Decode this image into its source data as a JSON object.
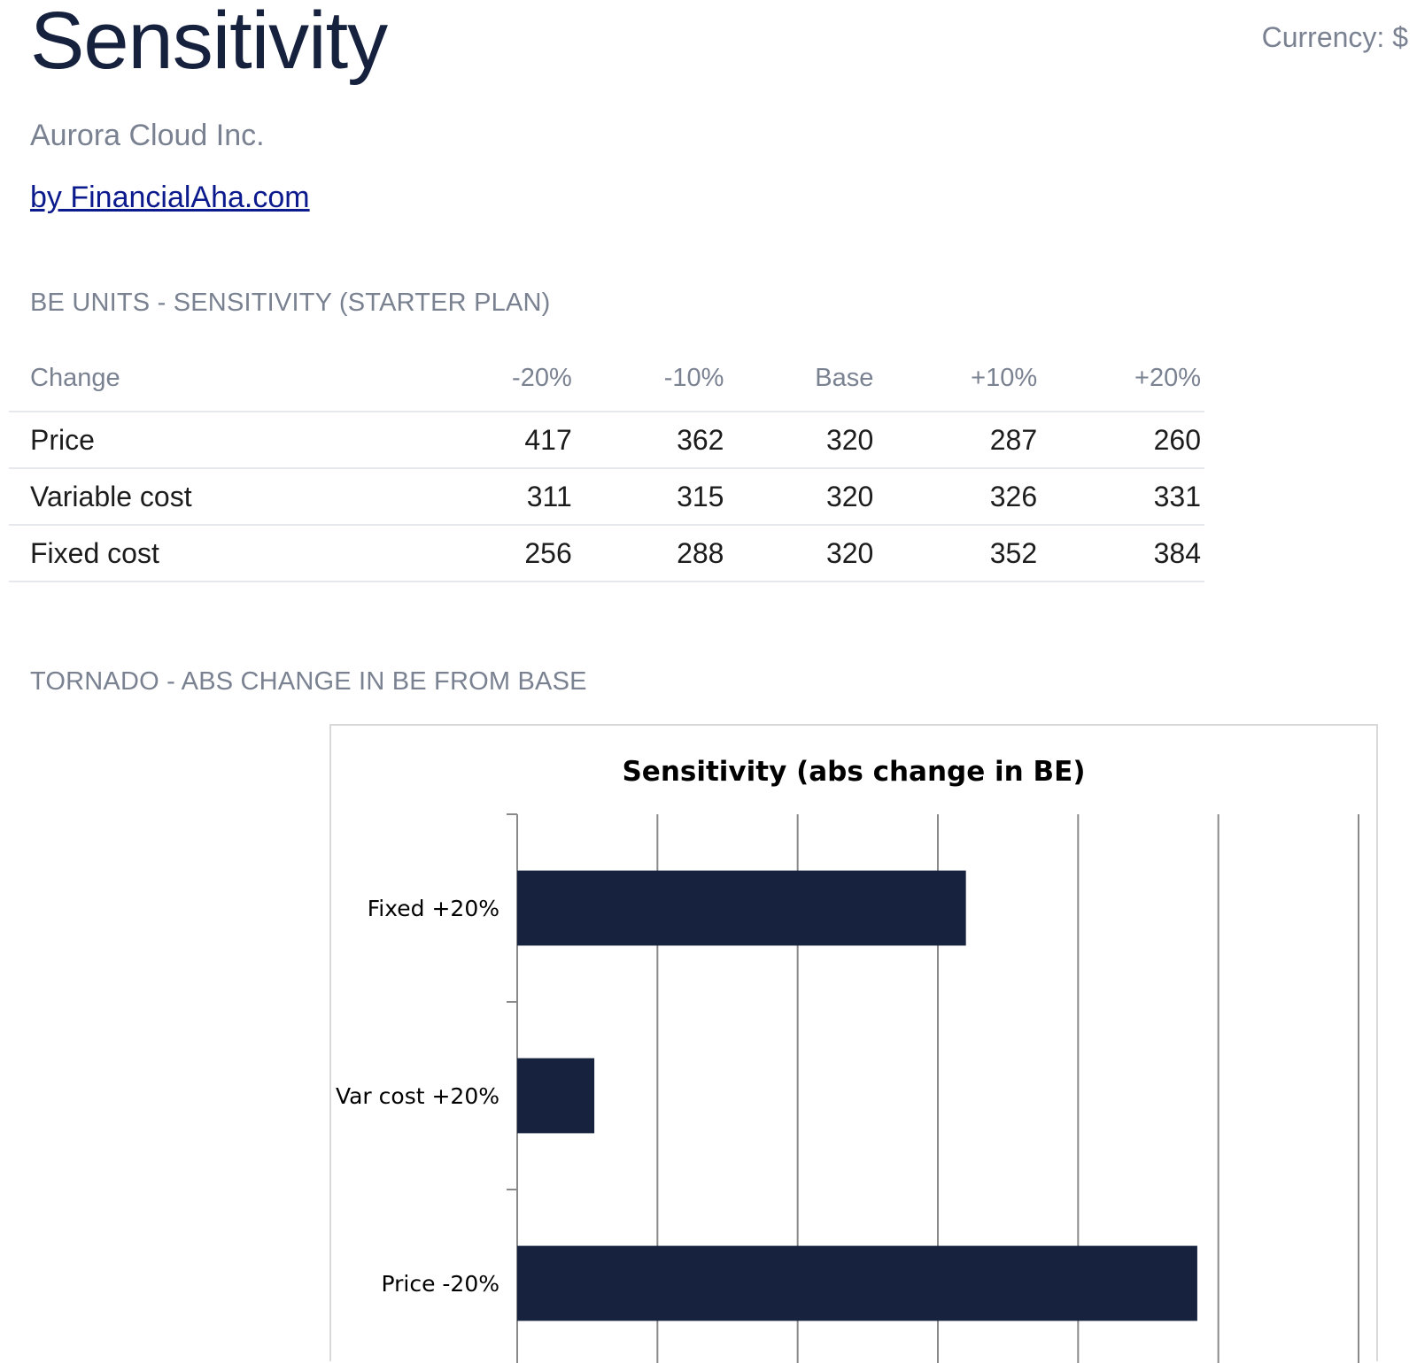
{
  "header": {
    "title": "Sensitivity",
    "currency": "Currency: $",
    "company": "Aurora Cloud Inc.",
    "author_link": "by FinancialAha.com"
  },
  "be_table": {
    "heading": "BE UNITS - SENSITIVITY (STARTER PLAN)",
    "columns": [
      "Change",
      "-20%",
      "-10%",
      "Base",
      "+10%",
      "+20%"
    ],
    "rows": [
      {
        "label": "Price",
        "values": [
          "417",
          "362",
          "320",
          "287",
          "260"
        ]
      },
      {
        "label": "Variable cost",
        "values": [
          "311",
          "315",
          "320",
          "326",
          "331"
        ]
      },
      {
        "label": "Fixed cost",
        "values": [
          "256",
          "288",
          "320",
          "352",
          "384"
        ]
      }
    ]
  },
  "tornado": {
    "heading": "TORNADO - ABS CHANGE IN BE FROM BASE"
  },
  "chart_data": {
    "type": "bar",
    "orientation": "horizontal",
    "title": "Sensitivity (abs change in BE)",
    "categories": [
      "Fixed +20%",
      "Var cost +20%",
      "Price -20%"
    ],
    "values": [
      64,
      11,
      97
    ],
    "xlabel": "",
    "ylabel": "",
    "xlim": [
      0,
      120
    ],
    "grid": true,
    "bar_color": "#17223e"
  },
  "colors": {
    "title": "#16213e",
    "muted": "#7a8292",
    "link": "#0b1a8c",
    "bar": "#17223e"
  }
}
